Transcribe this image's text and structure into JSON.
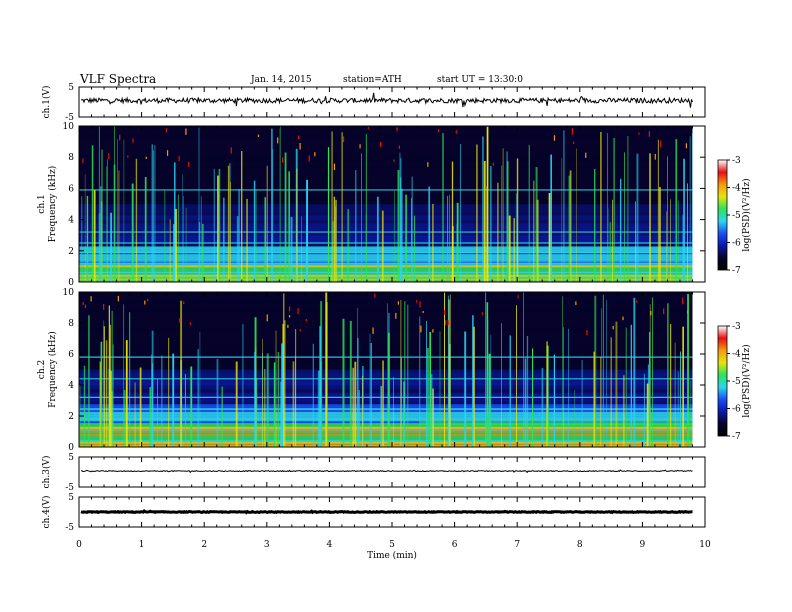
{
  "header": {
    "title": "VLF  Spectra",
    "date": "Jan. 14, 2015",
    "station": "station=ATH",
    "start": "start  UT =  13:30:0"
  },
  "chart_data": [
    {
      "type": "line",
      "name": "ch1-waveform",
      "ylabel": "ch.1(V)",
      "ylim": [
        -5,
        5
      ],
      "yticks": [
        "5",
        "-5"
      ],
      "xlim": [
        0,
        10
      ],
      "data_extent_min": 9.8,
      "approx_level": 0.5,
      "approx_amplitude": 0.6,
      "line_color": "#000000"
    },
    {
      "type": "heatmap",
      "name": "ch1-spectrogram",
      "ylabel": "ch.1\nFrequency (kHz)",
      "ylim": [
        0,
        10
      ],
      "yticks": [
        "10",
        "8",
        "6",
        "4",
        "2",
        "0"
      ],
      "xlim": [
        0,
        10
      ],
      "colorbar": {
        "label": "log(PSD)(V²/Hz)",
        "range": [
          -7,
          -3
        ],
        "ticks": [
          "-3",
          "-4",
          "-5",
          "-6",
          "-7"
        ]
      },
      "features": {
        "strong_band_kHz": [
          0,
          1
        ],
        "band_lines_kHz": [
          0.3,
          0.6,
          1.2,
          1.9,
          2.5,
          3.2,
          5.9
        ],
        "note": "vertical green/yellow sferic streaks across all frequencies"
      }
    },
    {
      "type": "heatmap",
      "name": "ch2-spectrogram",
      "ylabel": "ch.2\nFrequency (kHz)",
      "ylim": [
        0,
        10
      ],
      "yticks": [
        "10",
        "8",
        "6",
        "4",
        "2",
        "0"
      ],
      "xlim": [
        0,
        10
      ],
      "colorbar": {
        "label": "log(PSD)(V²/Hz)",
        "range": [
          -7,
          -3
        ],
        "ticks": [
          "-3",
          "-4",
          "-5",
          "-6",
          "-7"
        ]
      },
      "features": {
        "strong_band_kHz": [
          0,
          1.5
        ],
        "band_lines_kHz": [
          0.4,
          1.1,
          1.8,
          3.2,
          4.4,
          5.8
        ],
        "note": "vertical streaks; band level shift near 5.4 min"
      }
    },
    {
      "type": "line",
      "name": "ch3-waveform",
      "ylabel": "ch.3(V)",
      "ylim": [
        -5,
        5
      ],
      "yticks": [
        "5",
        "-5"
      ],
      "xlim": [
        0,
        10
      ],
      "approx_level": 0.3
    },
    {
      "type": "line",
      "name": "ch4-waveform",
      "ylabel": "ch.4(V)",
      "ylim": [
        -5,
        5
      ],
      "yticks": [
        "5",
        "-5"
      ],
      "xlim": [
        0,
        10
      ],
      "approx_level": 0
    }
  ],
  "xaxis": {
    "label": "Time  (min)",
    "ticks": [
      "0",
      "1",
      "2",
      "3",
      "4",
      "5",
      "6",
      "7",
      "8",
      "9",
      "10"
    ]
  },
  "colors": {
    "colormap": [
      "#000000",
      "#06032a",
      "#0a1aa8",
      "#1b4ff2",
      "#2bd5f0",
      "#2ee35a",
      "#e6e40d",
      "#f39a10",
      "#e81010",
      "#ffffff"
    ]
  }
}
